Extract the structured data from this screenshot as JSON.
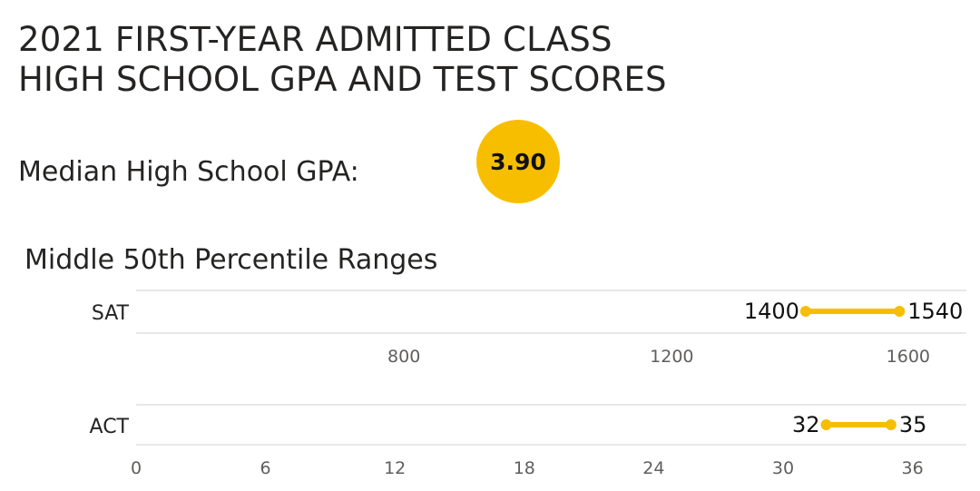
{
  "header": {
    "title_line1": "2021 FIRST-YEAR ADMITTED CLASS",
    "title_line2": "HIGH SCHOOL GPA AND TEST SCORES"
  },
  "gpa": {
    "label": "Median High School GPA:",
    "value": "3.90"
  },
  "ranges": {
    "title": "Middle 50th Percentile Ranges"
  },
  "colors": {
    "accent": "#F7BE00",
    "gridline": "#d9d9d9"
  },
  "chart_data": [
    {
      "type": "dumbbell",
      "category": "SAT",
      "low": 1400,
      "high": 1540,
      "ticks": [
        800,
        1200,
        1600
      ],
      "xlim": [
        400,
        1640
      ]
    },
    {
      "type": "dumbbell",
      "category": "ACT",
      "low": 32,
      "high": 35,
      "ticks": [
        0,
        6,
        12,
        18,
        24,
        30,
        36
      ],
      "xlim": [
        0,
        38.5
      ]
    }
  ]
}
